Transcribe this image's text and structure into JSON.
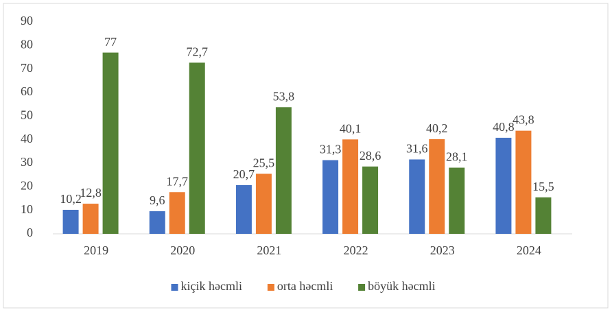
{
  "chart_data": {
    "type": "bar",
    "categories": [
      "2019",
      "2020",
      "2021",
      "2022",
      "2023",
      "2024"
    ],
    "series": [
      {
        "name": "kiçik həcmli",
        "color": "#4472c4",
        "values": [
          10.2,
          9.6,
          20.7,
          31.3,
          31.6,
          40.8
        ],
        "value_labels": [
          "10,2",
          "9,6",
          "20,7",
          "31,3",
          "31,6",
          "40,8"
        ]
      },
      {
        "name": "orta həcmli",
        "color": "#ed7d31",
        "values": [
          12.8,
          17.7,
          25.5,
          40.1,
          40.2,
          43.8
        ],
        "value_labels": [
          "12,8",
          "17,7",
          "25,5",
          "40,1",
          "40,2",
          "43,8"
        ]
      },
      {
        "name": "böyük həcmli",
        "color": "#548235",
        "values": [
          77,
          72.7,
          53.8,
          28.6,
          28.1,
          15.5
        ],
        "value_labels": [
          "77",
          "72,7",
          "53,8",
          "28,6",
          "28,1",
          "15,5"
        ]
      }
    ],
    "ylim": [
      0,
      90
    ],
    "yticks": [
      0,
      10,
      20,
      30,
      40,
      50,
      60,
      70,
      80,
      90
    ],
    "grid": false,
    "legend": "bottom"
  }
}
